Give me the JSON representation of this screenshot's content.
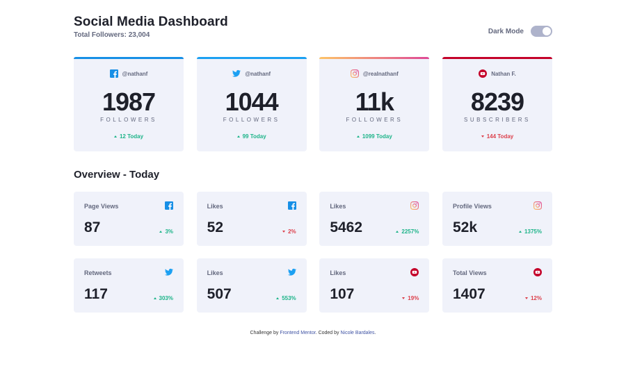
{
  "header": {
    "title": "Social Media Dashboard",
    "subtitle": "Total Followers: 23,004",
    "dark_mode_label": "Dark Mode"
  },
  "colors": {
    "facebook": "#178fe6",
    "twitter": "#1ca0f2",
    "instagram_from": "#fdc468",
    "instagram_to": "#df4996",
    "youtube": "#c4032a",
    "up": "#1db489",
    "down": "#dc414c"
  },
  "cards": [
    {
      "platform": "facebook",
      "icon": "facebook-icon",
      "handle": "@nathanf",
      "count": "1987",
      "unit": "FOLLOWERS",
      "change": "12 Today",
      "trend": "up"
    },
    {
      "platform": "twitter",
      "icon": "twitter-icon",
      "handle": "@nathanf",
      "count": "1044",
      "unit": "FOLLOWERS",
      "change": "99 Today",
      "trend": "up"
    },
    {
      "platform": "instagram",
      "icon": "instagram-icon",
      "handle": "@realnathanf",
      "count": "11k",
      "unit": "FOLLOWERS",
      "change": "1099 Today",
      "trend": "up"
    },
    {
      "platform": "youtube",
      "icon": "youtube-icon",
      "handle": "Nathan F.",
      "count": "8239",
      "unit": "SUBSCRIBERS",
      "change": "144 Today",
      "trend": "down"
    }
  ],
  "overview": {
    "title": "Overview - Today",
    "tiles": [
      {
        "label": "Page Views",
        "icon": "facebook-icon",
        "value": "87",
        "pct": "3%",
        "trend": "up"
      },
      {
        "label": "Likes",
        "icon": "facebook-icon",
        "value": "52",
        "pct": "2%",
        "trend": "down"
      },
      {
        "label": "Likes",
        "icon": "instagram-icon",
        "value": "5462",
        "pct": "2257%",
        "trend": "up"
      },
      {
        "label": "Profile Views",
        "icon": "instagram-icon",
        "value": "52k",
        "pct": "1375%",
        "trend": "up"
      },
      {
        "label": "Retweets",
        "icon": "twitter-icon",
        "value": "117",
        "pct": "303%",
        "trend": "up"
      },
      {
        "label": "Likes",
        "icon": "twitter-icon",
        "value": "507",
        "pct": "553%",
        "trend": "up"
      },
      {
        "label": "Likes",
        "icon": "youtube-icon",
        "value": "107",
        "pct": "19%",
        "trend": "down"
      },
      {
        "label": "Total Views",
        "icon": "youtube-icon",
        "value": "1407",
        "pct": "12%",
        "trend": "down"
      }
    ]
  },
  "footer": {
    "prefix": "Challenge by ",
    "link1": "Frontend Mentor",
    "middle": ". Coded by ",
    "link2": "Nicole Bardales",
    "suffix": "."
  }
}
